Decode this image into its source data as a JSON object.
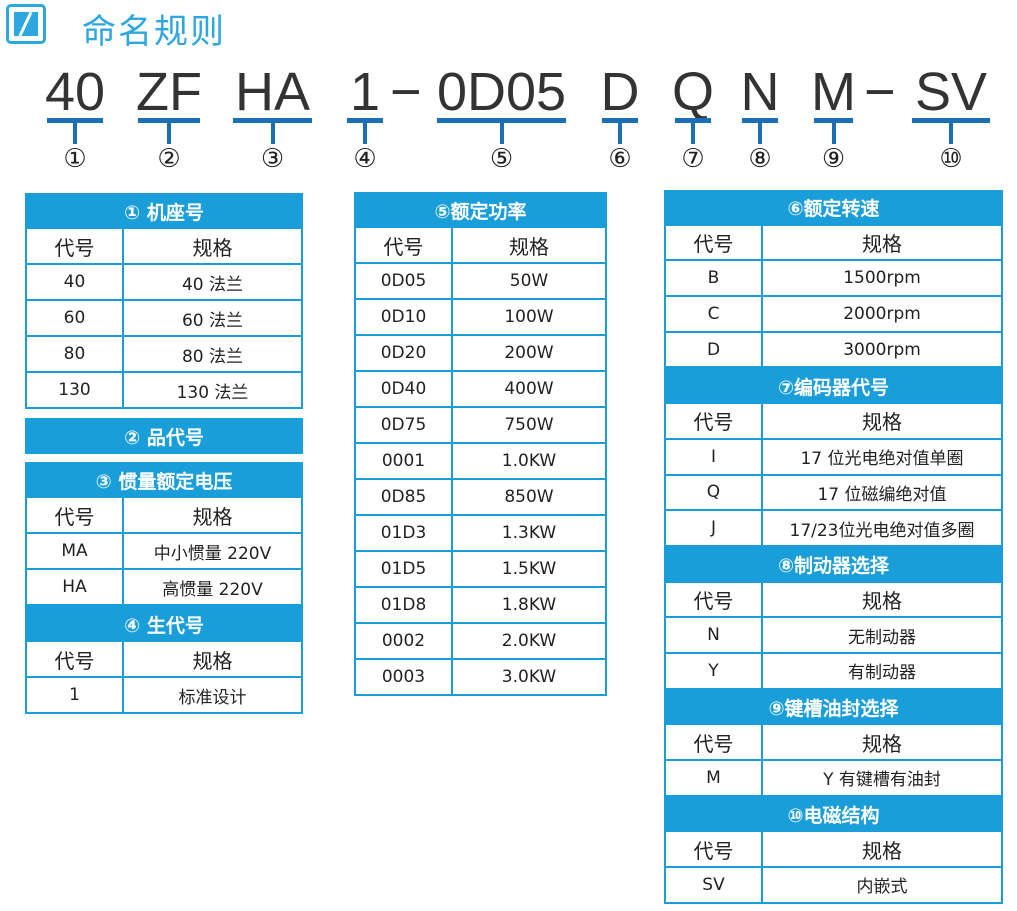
{
  "header": {
    "title": "命名规则",
    "logo_icon": "motor-logo-icon"
  },
  "code": {
    "segments": [
      "40",
      "ZF",
      "HA",
      "1",
      "0D05",
      "D",
      "Q",
      "N",
      "M",
      "SV"
    ],
    "separators": [
      "−",
      "−"
    ],
    "markers": [
      "①",
      "②",
      "③",
      "④",
      "⑤",
      "⑥",
      "⑦",
      "⑧",
      "⑨",
      "⑩"
    ]
  },
  "colors": {
    "accent": "#1a9ed9",
    "underline": "#1b6fb5",
    "title": "#2ea7e0"
  },
  "tables": {
    "left": [
      {
        "title": "①   机座号",
        "header": [
          "代号",
          "规格"
        ],
        "rows": [
          [
            "40",
            "40 法兰"
          ],
          [
            "60",
            "60 法兰"
          ],
          [
            "80",
            "80 法兰"
          ],
          [
            "130",
            "130 法兰"
          ]
        ]
      },
      {
        "title": "②   品代号"
      },
      {
        "title": "③   惯量额定电压",
        "header": [
          "代号",
          "规格"
        ],
        "rows": [
          [
            "MA",
            "中小惯量 220V"
          ],
          [
            "HA",
            "高惯量 220V"
          ]
        ]
      },
      {
        "title": "④   生代号",
        "header": [
          "代号",
          "规格"
        ],
        "rows": [
          [
            "1",
            "标准设计"
          ]
        ]
      }
    ],
    "middle": [
      {
        "title": "⑤额定功率",
        "header": [
          "代号",
          "规格"
        ],
        "rows": [
          [
            "0D05",
            "50W"
          ],
          [
            "0D10",
            "100W"
          ],
          [
            "0D20",
            "200W"
          ],
          [
            "0D40",
            "400W"
          ],
          [
            "0D75",
            "750W"
          ],
          [
            "0001",
            "1.0KW"
          ],
          [
            "0D85",
            "850W"
          ],
          [
            "01D3",
            "1.3KW"
          ],
          [
            "01D5",
            "1.5KW"
          ],
          [
            "01D8",
            "1.8KW"
          ],
          [
            "0002",
            "2.0KW"
          ],
          [
            "0003",
            "3.0KW"
          ]
        ]
      }
    ],
    "right": [
      {
        "title": "⑥额定转速",
        "header": [
          "代号",
          "规格"
        ],
        "rows": [
          [
            "B",
            "1500rpm"
          ],
          [
            "C",
            "2000rpm"
          ],
          [
            "D",
            "3000rpm"
          ]
        ]
      },
      {
        "title": "⑦编码器代号",
        "header": [
          "代号",
          "规格"
        ],
        "rows": [
          [
            "I",
            "17 位光电绝对值单圈"
          ],
          [
            "Q",
            "17 位磁编绝对值"
          ],
          [
            "J",
            "17/23位光电绝对值多圈"
          ]
        ]
      },
      {
        "title": "⑧制动器选择",
        "header": [
          "代号",
          "规格"
        ],
        "rows": [
          [
            "N",
            "无制动器"
          ],
          [
            "Y",
            "有制动器"
          ]
        ]
      },
      {
        "title": "⑨键槽油封选择",
        "header": [
          "代号",
          "规格"
        ],
        "rows": [
          [
            "M",
            "Y 有键槽有油封"
          ]
        ]
      },
      {
        "title": "⑩电磁结构",
        "header": [
          "代号",
          "规格"
        ],
        "rows": [
          [
            "SV",
            "内嵌式"
          ]
        ]
      }
    ]
  }
}
